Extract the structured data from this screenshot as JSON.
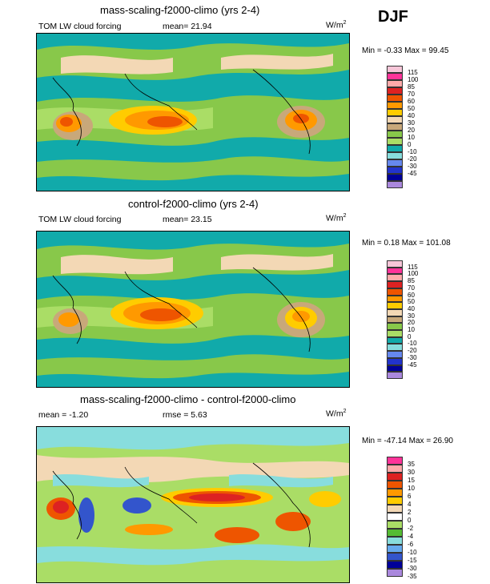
{
  "season": "DJF",
  "units_prefix": "W/m",
  "units_exp": "2",
  "panels": [
    {
      "title": "mass-scaling-f2000-climo (yrs 2-4)",
      "left_label": "TOM LW cloud forcing",
      "mid_label": "mean=  21.94",
      "minmax": "Min =  -0.33 Max =  99.45",
      "ticks": [
        "115",
        "100",
        "85",
        "70",
        "60",
        "50",
        "40",
        "30",
        "20",
        "10",
        "0",
        "-10",
        "-20",
        "-30",
        "-45"
      ],
      "colors": [
        "#f7c6d8",
        "#ff3399",
        "#ffaaaa",
        "#dd2222",
        "#ee5500",
        "#ff9900",
        "#ffcc00",
        "#f3d8b5",
        "#c8a87a",
        "#88c84a",
        "#aadd66",
        "#11aaaa",
        "#88dddd",
        "#6688ee",
        "#2233cc",
        "#000099",
        "#aa88dd"
      ]
    },
    {
      "title": "control-f2000-climo (yrs 2-4)",
      "left_label": "TOM LW cloud forcing",
      "mid_label": "mean=  23.15",
      "minmax": "Min =  0.18 Max = 101.08",
      "ticks": [
        "115",
        "100",
        "85",
        "70",
        "60",
        "50",
        "40",
        "30",
        "20",
        "10",
        "0",
        "-10",
        "-20",
        "-30",
        "-45"
      ],
      "colors": [
        "#f7c6d8",
        "#ff3399",
        "#ffaaaa",
        "#dd2222",
        "#ee5500",
        "#ff9900",
        "#ffcc00",
        "#f3d8b5",
        "#c8a87a",
        "#88c84a",
        "#aadd66",
        "#11aaaa",
        "#88dddd",
        "#6688ee",
        "#2233cc",
        "#000099",
        "#aa88dd"
      ]
    },
    {
      "title": "mass-scaling-f2000-climo - control-f2000-climo",
      "left_label": "mean =  -1.20",
      "mid_label": "rmse =  5.63",
      "minmax": "Min = -47.14 Max =  26.90",
      "ticks": [
        "35",
        "30",
        "15",
        "10",
        "6",
        "4",
        "2",
        "0",
        "-2",
        "-4",
        "-6",
        "-10",
        "-15",
        "-30",
        "-35"
      ],
      "colors": [
        "#ff3399",
        "#ffaaaa",
        "#dd2222",
        "#ee5500",
        "#ff9900",
        "#ffcc00",
        "#f3d8b5",
        "#ffffff",
        "#aadd66",
        "#55bb33",
        "#88dddd",
        "#66aaee",
        "#3355cc",
        "#000099",
        "#aa88dd"
      ]
    }
  ]
}
